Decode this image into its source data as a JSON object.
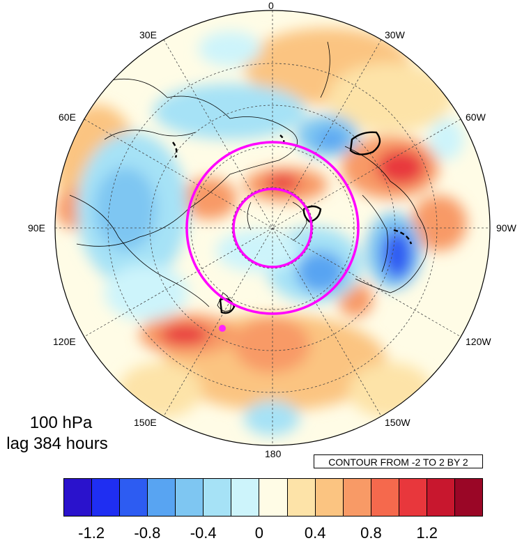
{
  "figure": {
    "level": "100 hPa",
    "lag": "lag 384 hours",
    "contour_note": "CONTOUR FROM -2 TO 2 BY 2"
  },
  "longitude_labels": [
    "0",
    "30W",
    "60W",
    "90W",
    "120W",
    "150W",
    "180",
    "150E",
    "120E",
    "90E",
    "60E",
    "30E"
  ],
  "colorbar": {
    "colors": [
      "#2a12cc",
      "#1f2ef2",
      "#2d5cf2",
      "#58a4f2",
      "#7ec6f2",
      "#a6e2f6",
      "#cdf4fb",
      "#fffce6",
      "#fde3a8",
      "#fbc481",
      "#f89a66",
      "#f5694d",
      "#e8373c",
      "#c8172e",
      "#9a0626"
    ],
    "tick_labels": [
      "-1.2",
      "-0.8",
      "-0.4",
      "0",
      "0.4",
      "0.8",
      "1.2"
    ],
    "tick_values": [
      -1.2,
      -0.8,
      -0.4,
      0,
      0.4,
      0.8,
      1.2
    ]
  },
  "overlay": {
    "circle_color": "#ff00ff",
    "marker_color": "#ff22ff",
    "contour_color": "#000000"
  }
}
